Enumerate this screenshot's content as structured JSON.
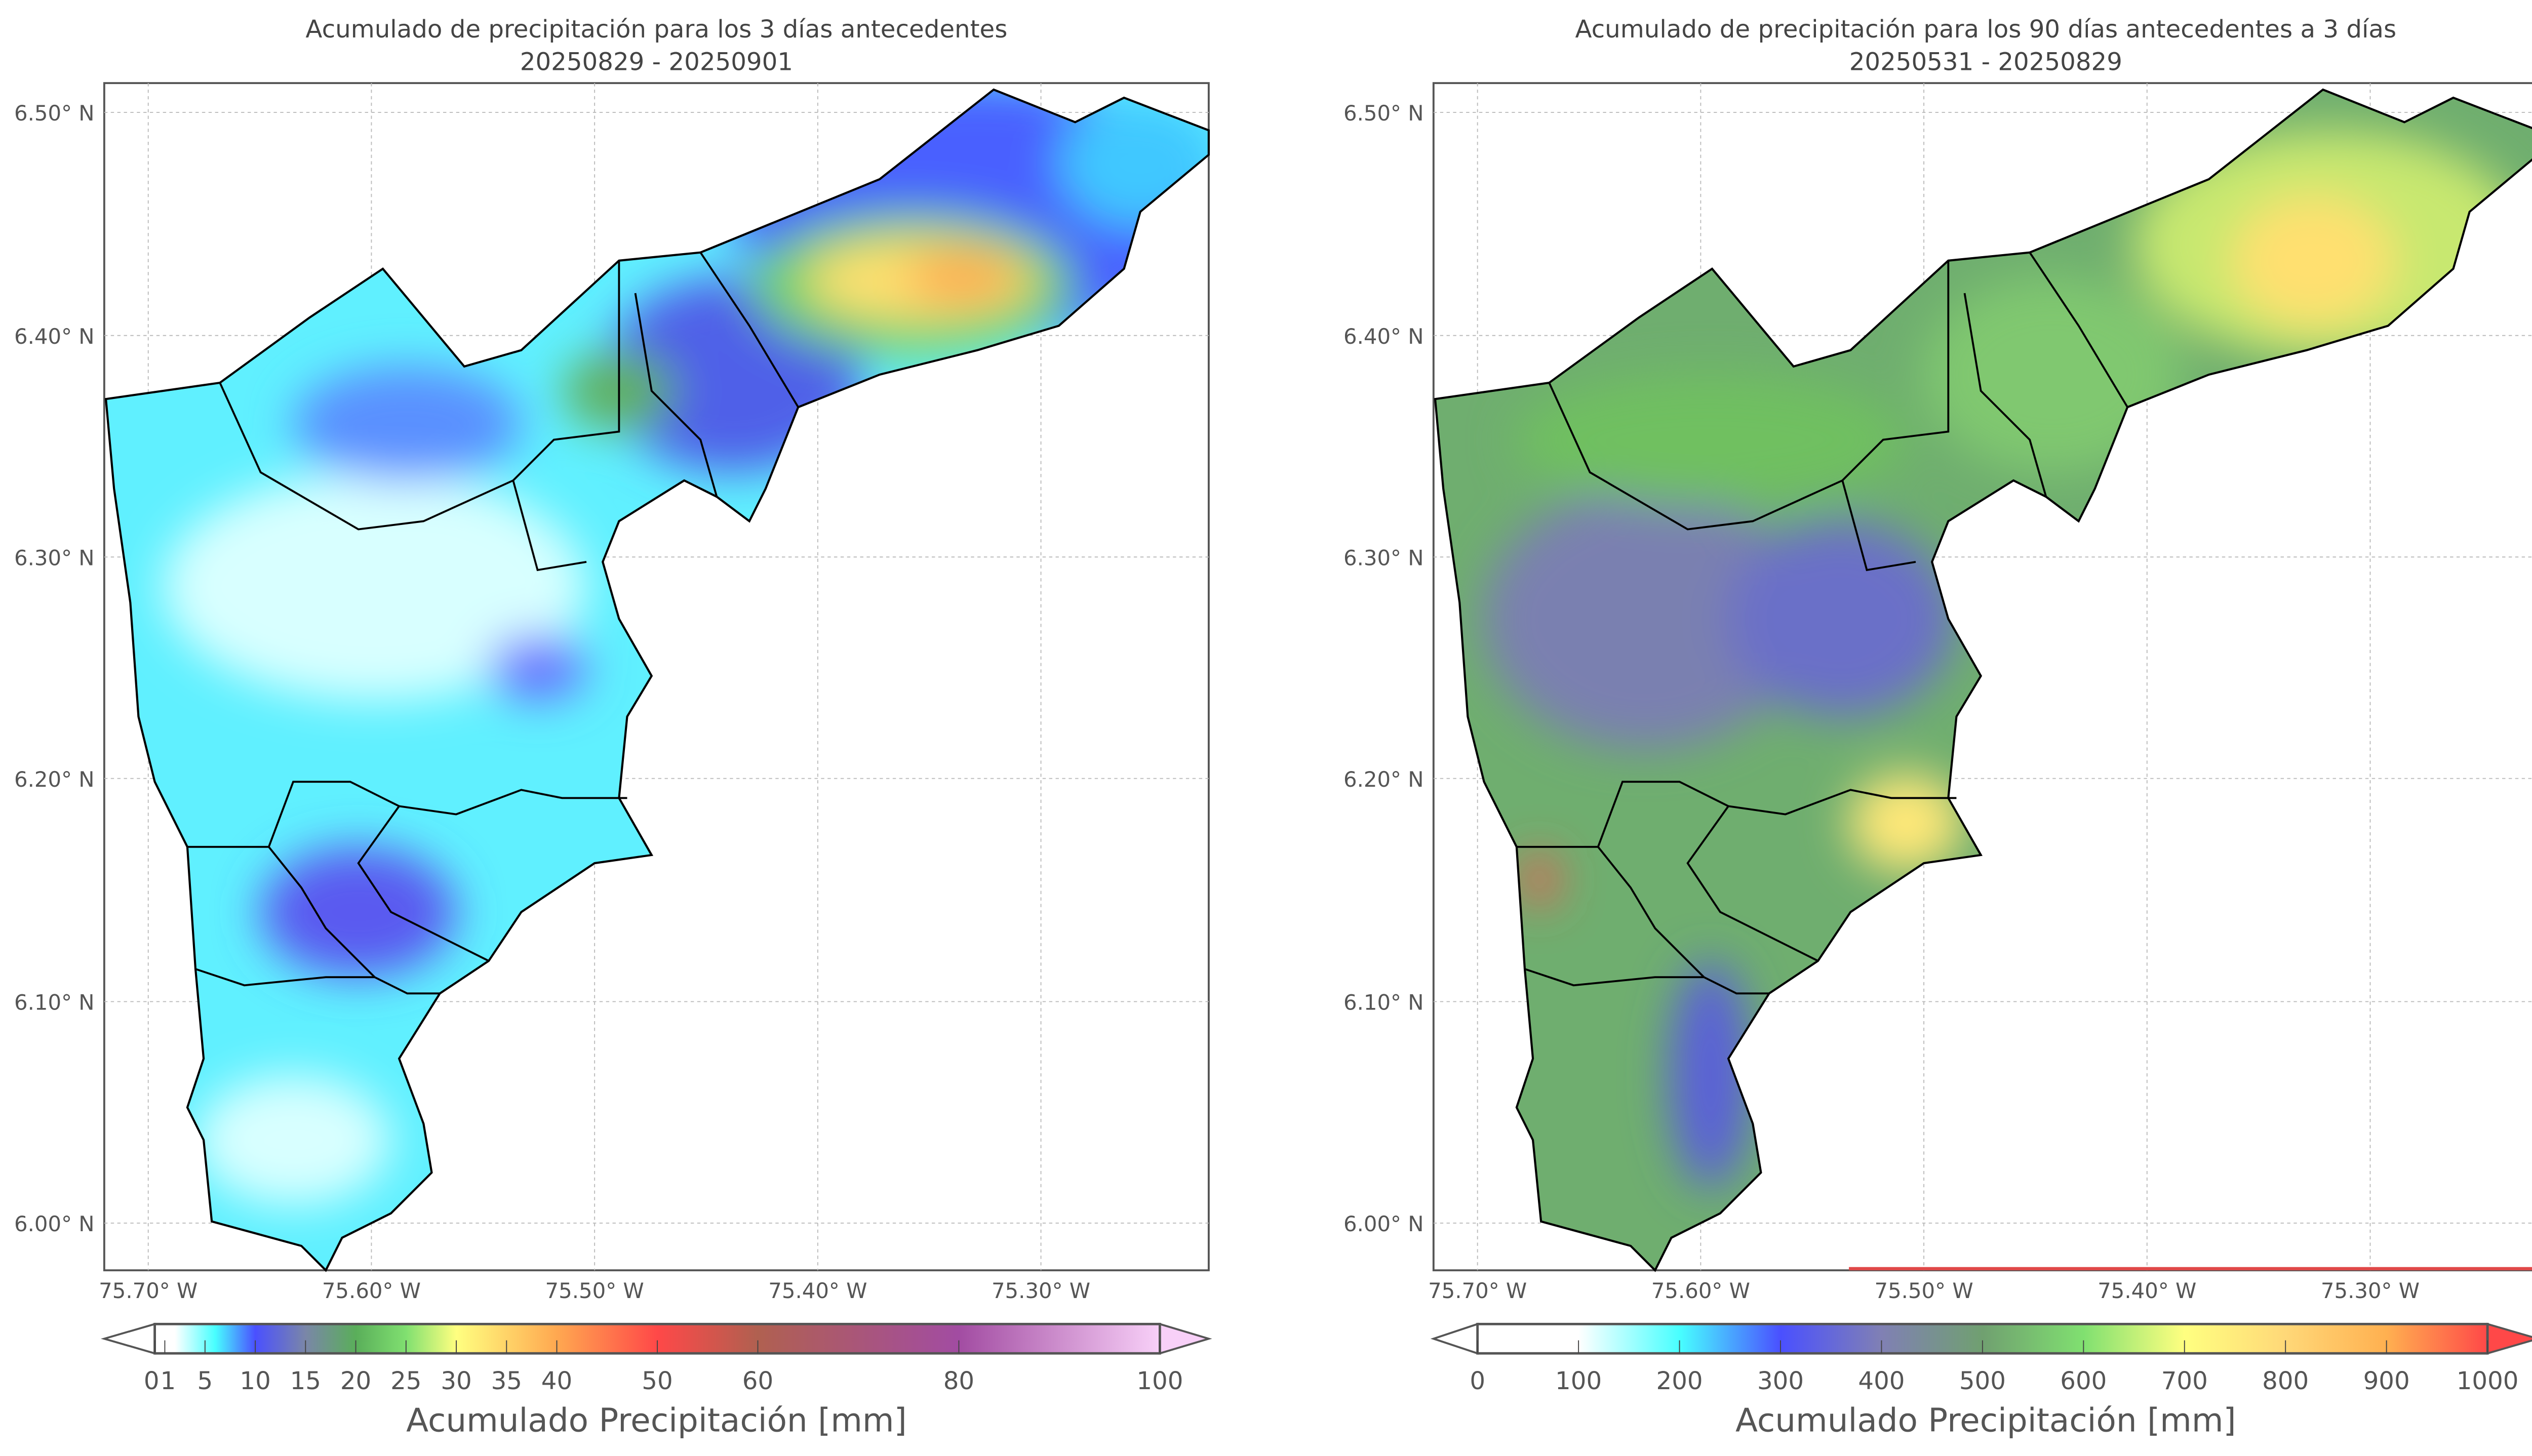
{
  "chart_data": [
    {
      "type": "heatmap",
      "title": "Acumulado de precipitación para los 3 días antecedentes",
      "subtitle": "20250829 - 20250901",
      "x_ticks": [
        "75.70° W",
        "75.60° W",
        "75.50° W",
        "75.40° W",
        "75.30° W"
      ],
      "y_ticks": [
        "6.50° N",
        "6.40° N",
        "6.30° N",
        "6.20° N",
        "6.10° N",
        "6.00° N"
      ],
      "xlim": [
        -75.72,
        -75.225
      ],
      "ylim": [
        5.98,
        6.515
      ],
      "grid": true,
      "colorbar": {
        "label": "Acumulado Precipitación [mm]",
        "range": [
          0,
          100
        ],
        "ticks": [
          0,
          1,
          5,
          10,
          15,
          20,
          25,
          30,
          35,
          40,
          50,
          60,
          80,
          100
        ],
        "tick_labels": [
          "0",
          "1",
          "5",
          "10",
          "15",
          "20",
          "25",
          "30",
          "35",
          "40",
          "50",
          "60",
          "80",
          "100"
        ],
        "extend": "both",
        "stops": [
          [
            0,
            "#ffffff"
          ],
          [
            2,
            "#ffffff"
          ],
          [
            6,
            "#48ffff"
          ],
          [
            10,
            "#4a50ff"
          ],
          [
            15,
            "#7a86a8"
          ],
          [
            20,
            "#5aae5a"
          ],
          [
            25,
            "#80e070"
          ],
          [
            30,
            "#ffff80"
          ],
          [
            40,
            "#ffa850"
          ],
          [
            50,
            "#ff4848"
          ],
          [
            60,
            "#b06050"
          ],
          [
            80,
            "#a24ca2"
          ],
          [
            100,
            "#f8d0f8"
          ]
        ],
        "under_color": "#ffffff",
        "over_color": "#f8d0f8"
      },
      "notes": "Max ~40 mm near 6.43N 75.33W; mostly 3-10 mm elsewhere"
    },
    {
      "type": "heatmap",
      "title": "Acumulado de precipitación para los 90 días antecedentes a 3 días",
      "subtitle": "20250531 - 20250829",
      "x_ticks": [
        "75.70° W",
        "75.60° W",
        "75.50° W",
        "75.40° W",
        "75.30° W"
      ],
      "y_ticks": [
        "6.50° N",
        "6.40° N",
        "6.30° N",
        "6.20° N",
        "6.10° N",
        "6.00° N"
      ],
      "xlim": [
        -75.72,
        -75.225
      ],
      "ylim": [
        5.98,
        6.515
      ],
      "grid": true,
      "colorbar": {
        "label": "Acumulado Precipitación [mm]",
        "range": [
          0,
          1000
        ],
        "ticks": [
          0,
          100,
          200,
          300,
          400,
          500,
          600,
          700,
          800,
          900,
          1000
        ],
        "tick_labels": [
          "0",
          "100",
          "200",
          "300",
          "400",
          "500",
          "600",
          "700",
          "800",
          "900",
          "1000"
        ],
        "extend": "both",
        "stops": [
          [
            0,
            "#ffffff"
          ],
          [
            100,
            "#ffffff"
          ],
          [
            200,
            "#48ffff"
          ],
          [
            300,
            "#4a50ff"
          ],
          [
            400,
            "#8080b4"
          ],
          [
            500,
            "#70a070"
          ],
          [
            600,
            "#80e070"
          ],
          [
            700,
            "#ffff80"
          ],
          [
            800,
            "#ffd878"
          ],
          [
            900,
            "#ffb050"
          ],
          [
            1000,
            "#ff4848"
          ]
        ],
        "under_color": "#ffffff",
        "over_color": "#ff4848"
      },
      "notes": "Mostly 400-650 mm; ~750 mm in NE and SE; local peak ~1000 mm near 6.15N 75.67W"
    }
  ]
}
